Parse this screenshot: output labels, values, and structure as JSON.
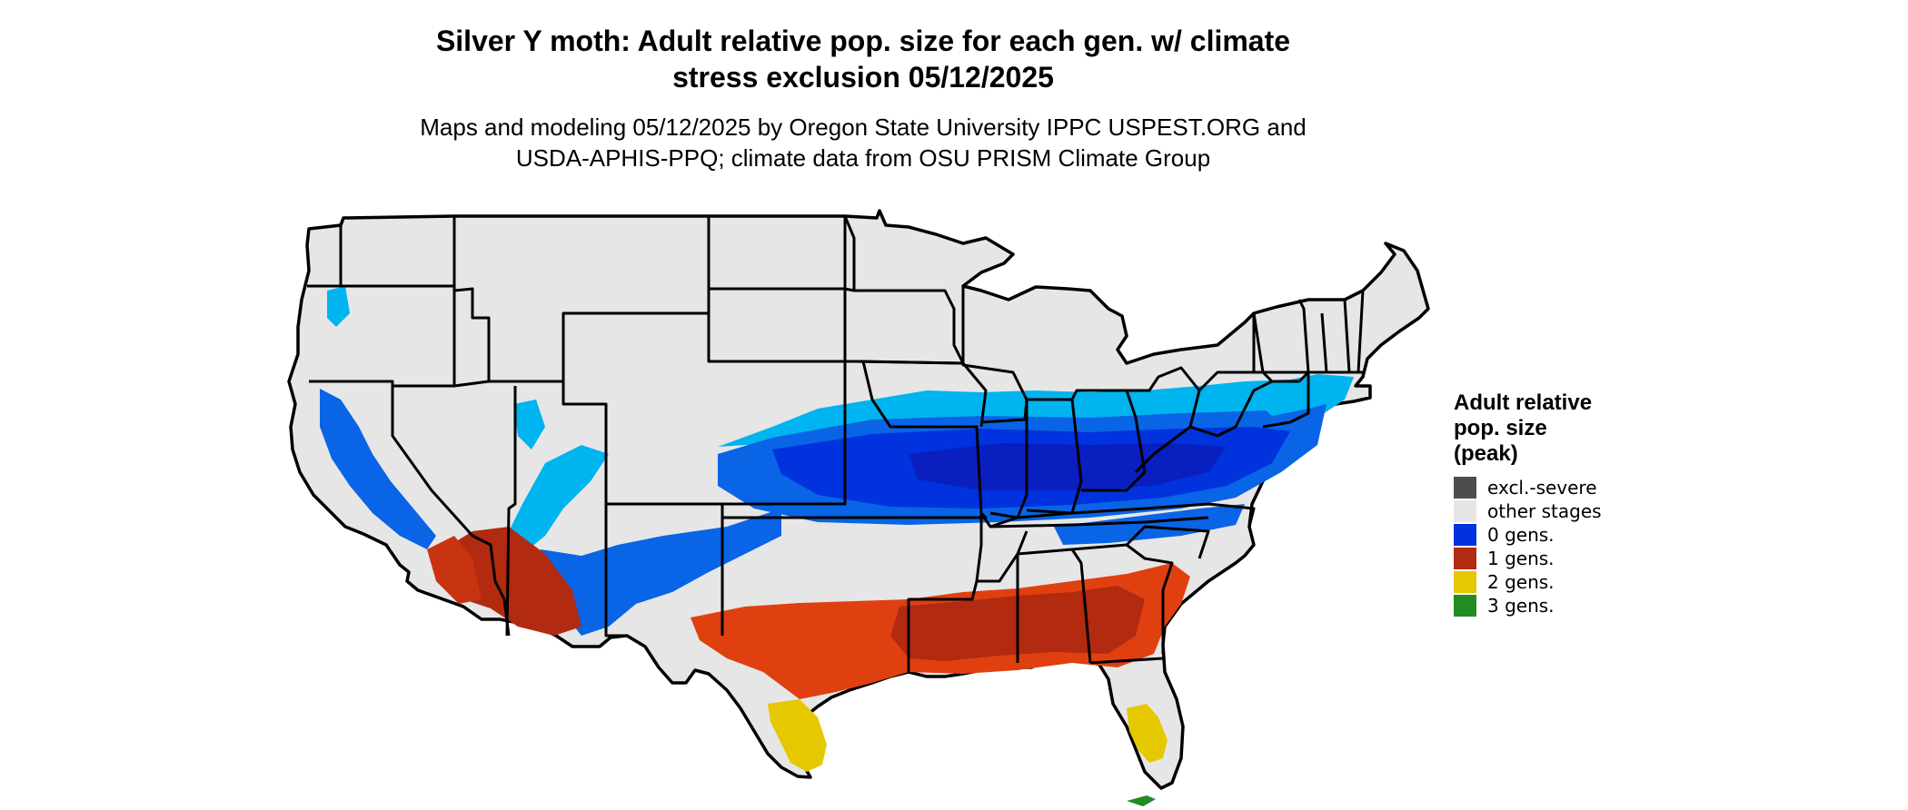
{
  "title": {
    "line1": "Silver Y moth: Adult relative pop. size for each gen. w/ climate",
    "line2": "stress exclusion 05/12/2025"
  },
  "subtitle": {
    "line1": "Maps and modeling 05/12/2025 by Oregon State University IPPC USPEST.ORG and",
    "line2": "USDA-APHIS-PPQ; climate data from OSU PRISM Climate Group"
  },
  "legend": {
    "title_lines": [
      "Adult relative",
      "pop. size",
      "(peak)"
    ],
    "items": [
      {
        "label": "excl.-severe",
        "color": "#4d4d4d"
      },
      {
        "label": "other stages",
        "color": "#e6e6e6"
      },
      {
        "label": "0 gens.",
        "color": "#0033dd"
      },
      {
        "label": "1 gens.",
        "color": "#b22a10"
      },
      {
        "label": "2 gens.",
        "color": "#e6c800"
      },
      {
        "label": "3 gens.",
        "color": "#228b22"
      }
    ]
  },
  "map": {
    "region": "Contiguous United States",
    "background_color": "#e6e6e6",
    "border_color": "#000000",
    "zones": {
      "light_blue": "#00b4f0",
      "mid_blue": "#0a64e6",
      "blue": "#0033dd",
      "dark_blue": "#0a1fc0",
      "orange_red": "#e04010",
      "dark_red": "#b22a10",
      "yellow": "#e6c800",
      "green": "#228b22"
    }
  }
}
